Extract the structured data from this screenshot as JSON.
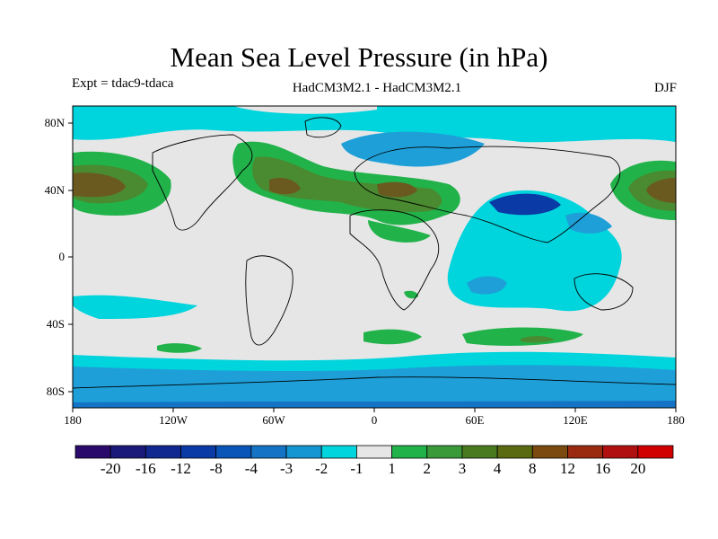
{
  "title": "Mean Sea Level Pressure (in hPa)",
  "subtitle_left": "Expt = tdac9-tdaca",
  "subtitle_center": "HadCM3M2.1 - HadCM3M2.1",
  "subtitle_right": "DJF",
  "lat_labels": [
    "80N",
    "40N",
    "0",
    "40S",
    "80S"
  ],
  "lon_labels": [
    "180",
    "120W",
    "60W",
    "0",
    "60E",
    "120E",
    "180"
  ],
  "colorbar": {
    "labels": [
      "-20",
      "-16",
      "-12",
      "-8",
      "-4",
      "-3",
      "-2",
      "-1",
      "1",
      "2",
      "3",
      "4",
      "8",
      "12",
      "16",
      "20"
    ],
    "colors": [
      "#2a0a6b",
      "#1a1a7a",
      "#10288f",
      "#0a3aa5",
      "#0a55b8",
      "#1473c5",
      "#1496d2",
      "#00d4dc",
      "#e6e6e6",
      "#22b24a",
      "#3a9a3a",
      "#4a7a20",
      "#5a6a10",
      "#7a4a10",
      "#9a2a10",
      "#b01010",
      "#d00000"
    ]
  },
  "field_colors": {
    "land_background": "#e6e6e6",
    "neg1": "#00d4dc",
    "neg2": "#1e9fd8",
    "neg3": "#1473c5",
    "neg4": "#0a3aa5",
    "pos1": "#22b24a",
    "pos2": "#4a8a30",
    "pos3": "#6a5a20"
  }
}
